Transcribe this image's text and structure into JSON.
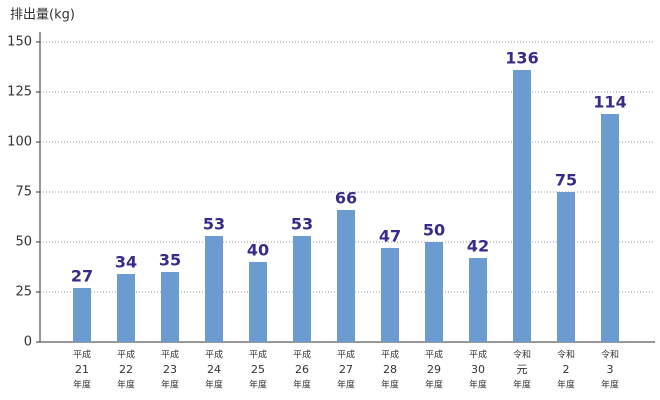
{
  "chart_data": {
    "type": "bar",
    "y_label": "排出量(kg)",
    "categories": [
      [
        "平成",
        "21",
        "年度"
      ],
      [
        "平成",
        "22",
        "年度"
      ],
      [
        "平成",
        "23",
        "年度"
      ],
      [
        "平成",
        "24",
        "年度"
      ],
      [
        "平成",
        "25",
        "年度"
      ],
      [
        "平成",
        "26",
        "年度"
      ],
      [
        "平成",
        "27",
        "年度"
      ],
      [
        "平成",
        "28",
        "年度"
      ],
      [
        "平成",
        "29",
        "年度"
      ],
      [
        "平成",
        "30",
        "年度"
      ],
      [
        "令和",
        "元",
        "年度"
      ],
      [
        "令和",
        "2",
        "年度"
      ],
      [
        "令和",
        "3",
        "年度"
      ]
    ],
    "values": [
      27,
      34,
      35,
      53,
      40,
      53,
      66,
      47,
      50,
      42,
      136,
      75,
      114
    ],
    "color": "#6b9bd1",
    "label_color": "#3b2a8a",
    "ylim": [
      0,
      155
    ],
    "yticks": [
      0,
      25,
      50,
      75,
      100,
      125,
      150
    ],
    "grid": true
  }
}
